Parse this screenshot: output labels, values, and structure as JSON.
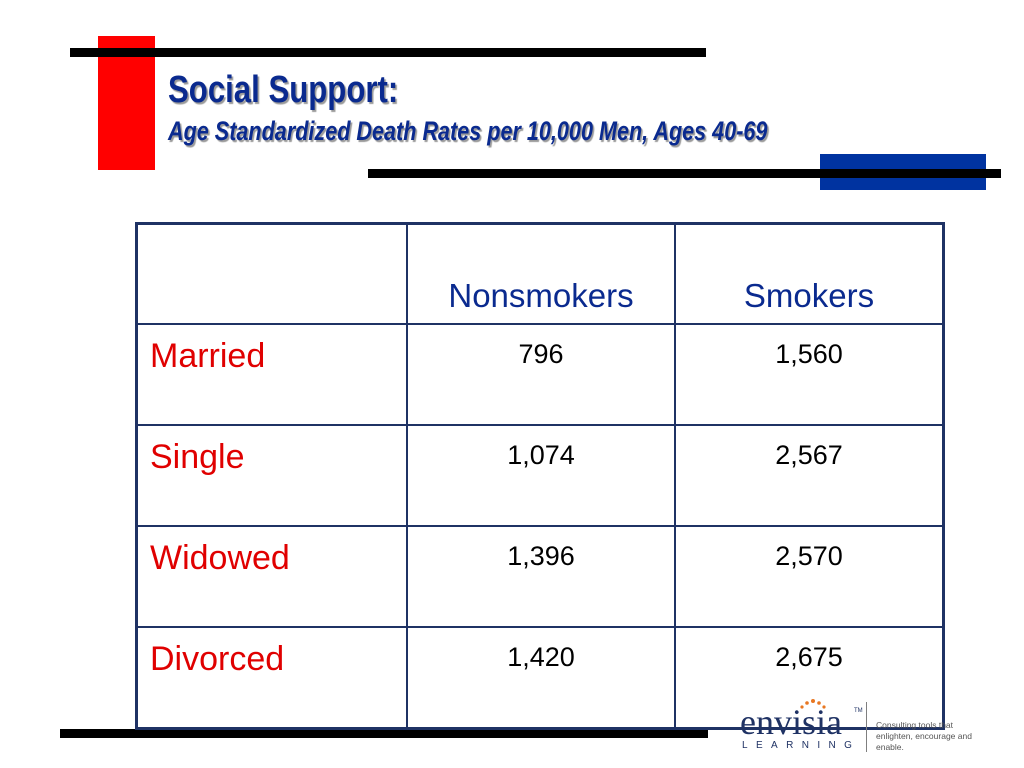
{
  "slide": {
    "title": "Social Support:",
    "subtitle": "Age Standardized Death Rates per 10,000 Men, Ages 40-69"
  },
  "table": {
    "columns": [
      "",
      "Nonsmokers",
      "Smokers"
    ],
    "rows": [
      {
        "label": "Married",
        "nonsmokers": "796",
        "smokers": "1,560"
      },
      {
        "label": "Single",
        "nonsmokers": "1,074",
        "smokers": "2,567"
      },
      {
        "label": "Widowed",
        "nonsmokers": "1,396",
        "smokers": "2,570"
      },
      {
        "label": "Divorced",
        "nonsmokers": "1,420",
        "smokers": "2,675"
      }
    ]
  },
  "logo": {
    "wordmark": "envisia",
    "trademark": "TM",
    "sub": "LEARNING",
    "tagline_line1": "Consulting tools that",
    "tagline_line2": "enlighten, encourage and enable."
  },
  "colors": {
    "title": "#0a2a8f",
    "row_label": "#e00000",
    "red_block": "#ff0000",
    "blue_block": "#0033a0",
    "table_border": "#1f3264"
  }
}
